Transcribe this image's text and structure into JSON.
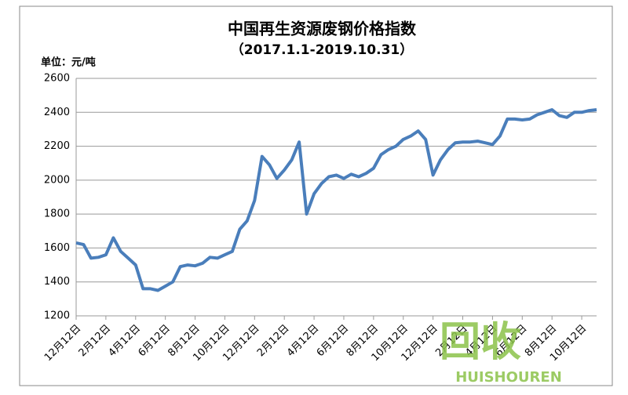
{
  "chart_data": {
    "type": "line",
    "title": "中国再生资源废钢价格指数",
    "subtitle": "（2017.1.1-2019.10.31）",
    "y_axis_label": "单位：元/吨",
    "watermark": [
      "回收",
      "HUISHOUREN"
    ],
    "categories": [
      "12月12日",
      null,
      null,
      null,
      "2月12日",
      null,
      null,
      null,
      "4月12日",
      null,
      null,
      null,
      "6月12日",
      null,
      null,
      null,
      "8月12日",
      null,
      null,
      null,
      "10月12日",
      null,
      null,
      null,
      "12月12日",
      null,
      null,
      null,
      "2月12日",
      null,
      null,
      null,
      "4月12日",
      null,
      null,
      null,
      "6月12日",
      null,
      null,
      null,
      "8月12日",
      null,
      null,
      null,
      "10月12日",
      null,
      null,
      null,
      "12月12日",
      null,
      null,
      null,
      "2月12日",
      null,
      null,
      null,
      "4月12日",
      null,
      null,
      null,
      "6月12日",
      null,
      null,
      null,
      "8月12日",
      null,
      null,
      null,
      "10月12日",
      null,
      null
    ],
    "values": [
      1630,
      1620,
      1540,
      1545,
      1560,
      1660,
      1580,
      1540,
      1500,
      1360,
      1360,
      1350,
      1375,
      1400,
      1490,
      1500,
      1495,
      1510,
      1545,
      1540,
      1560,
      1580,
      1710,
      1760,
      1880,
      2140,
      2090,
      2010,
      2060,
      2120,
      2225,
      1800,
      1920,
      1980,
      2020,
      2030,
      2010,
      2035,
      2020,
      2040,
      2070,
      2150,
      2180,
      2200,
      2240,
      2260,
      2290,
      2240,
      2030,
      2120,
      2180,
      2220,
      2225,
      2225,
      2230,
      2220,
      2210,
      2260,
      2360,
      2360,
      2355,
      2360,
      2385,
      2400,
      2415,
      2380,
      2370,
      2400,
      2400,
      2410,
      2415
    ],
    "color": "#4a7ebb",
    "ylim": [
      1200,
      2600
    ],
    "yticks": [
      1200,
      1400,
      1600,
      1800,
      2000,
      2200,
      2400,
      2600
    ],
    "grid": true
  }
}
